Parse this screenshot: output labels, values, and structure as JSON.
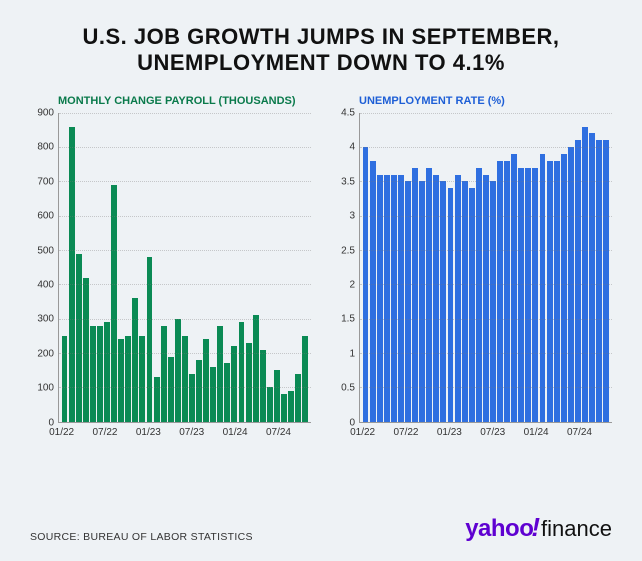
{
  "title": "U.S. JOB GROWTH JUMPS IN SEPTEMBER, UNEMPLOYMENT DOWN TO 4.1%",
  "source": "SOURCE: BUREAU OF LABOR STATISTICS",
  "logo": {
    "brand": "yahoo",
    "suffix": "finance"
  },
  "background_color": "#eef2f5",
  "payroll_chart": {
    "type": "bar",
    "title": "MONTHLY CHANGE PAYROLL (THOUSANDS)",
    "title_color": "#0a7a4b",
    "bar_color": "#0a8a54",
    "ylim": [
      0,
      900
    ],
    "ytick_step": 100,
    "yticks": [
      "0",
      "100",
      "200",
      "300",
      "400",
      "500",
      "600",
      "700",
      "800",
      "900"
    ],
    "x_labels": [
      "01/22",
      "07/22",
      "01/23",
      "07/23",
      "01/24",
      "07/24"
    ],
    "values": [
      250,
      860,
      490,
      420,
      280,
      280,
      290,
      690,
      240,
      250,
      360,
      250,
      480,
      130,
      280,
      190,
      300,
      250,
      140,
      180,
      240,
      160,
      280,
      170,
      220,
      290,
      230,
      310,
      210,
      100,
      150,
      80,
      90,
      140,
      250
    ],
    "grid_color": "rgba(120,120,120,0.35)",
    "axis_color": "#999",
    "tick_fontsize": 10,
    "title_fontsize": 11
  },
  "unemployment_chart": {
    "type": "bar",
    "title": "UNEMPLOYMENT RATE (%)",
    "title_color": "#1e5fd6",
    "bar_color": "#2f6fe0",
    "ylim": [
      0,
      4.5
    ],
    "ytick_step": 0.5,
    "yticks": [
      "0",
      "0.5",
      "1",
      "1.5",
      "2",
      "2.5",
      "3",
      "3.5",
      "4",
      "4.5"
    ],
    "x_labels": [
      "01/22",
      "07/22",
      "01/23",
      "07/23",
      "01/24",
      "07/24"
    ],
    "values": [
      4.0,
      3.8,
      3.6,
      3.6,
      3.6,
      3.6,
      3.5,
      3.7,
      3.5,
      3.7,
      3.6,
      3.5,
      3.4,
      3.6,
      3.5,
      3.4,
      3.7,
      3.6,
      3.5,
      3.8,
      3.8,
      3.9,
      3.7,
      3.7,
      3.7,
      3.9,
      3.8,
      3.8,
      3.9,
      4.0,
      4.1,
      4.3,
      4.2,
      4.1,
      4.1
    ],
    "grid_color": "rgba(120,120,120,0.35)",
    "axis_color": "#999",
    "tick_fontsize": 10,
    "title_fontsize": 11
  }
}
